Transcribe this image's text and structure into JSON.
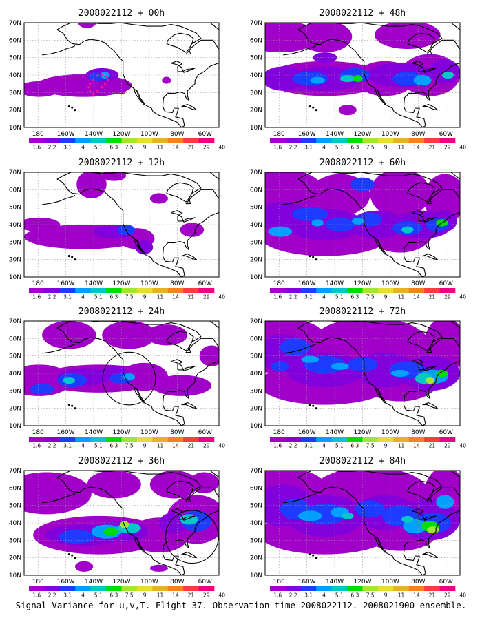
{
  "caption": "Signal Variance for u,v,T. Flight 37. Observation time 2008022112. 2008021900 ensemble.",
  "colorbar": {
    "labels": [
      "1.6",
      "2.2",
      "3.1",
      "4",
      "5.1",
      "6.3",
      "7.5",
      "9",
      "11",
      "14",
      "21",
      "29",
      "40"
    ],
    "colors": [
      "#a000c8",
      "#8200dc",
      "#1e3cff",
      "#00a0ff",
      "#00c8c8",
      "#00dc00",
      "#a0e632",
      "#e6dc32",
      "#e6af2d",
      "#f08228",
      "#fa3c3c",
      "#f00082"
    ]
  },
  "map_axes": {
    "lon_labels": [
      "180",
      "160W",
      "140W",
      "120W",
      "100W",
      "80W",
      "60W"
    ],
    "lat_labels": [
      "10N",
      "20N",
      "30N",
      "40N",
      "50N",
      "60N",
      "70N"
    ],
    "grid": true
  },
  "colors": {
    "coast": "#000000",
    "grid": "#9a9a9a",
    "obs_track": "#ff1493"
  },
  "chart_data": [
    {
      "type": "heatmap",
      "title": "2008022112 + 00h",
      "lead": "00h",
      "field": "signal variance (u,v,T)",
      "regions": [
        {
          "name": "central Pacific band",
          "lon": [
            -180,
            -128
          ],
          "lat": [
            28,
            42
          ],
          "max_level": "4-5.1"
        },
        {
          "name": "obs area (140W,38N)",
          "lon": [
            -148,
            -130
          ],
          "lat": [
            34,
            42
          ],
          "max_level": "4-5.1"
        }
      ],
      "overlay": "observation track (dotted magenta) near 147W-135W, 28N-42N"
    },
    {
      "type": "heatmap",
      "title": "2008022112 + 12h",
      "lead": "12h",
      "field": "signal variance (u,v,T)",
      "regions": [
        {
          "name": "Pacific band",
          "lon": [
            -180,
            -115
          ],
          "lat": [
            24,
            42
          ],
          "max_level": "4-5.1"
        },
        {
          "name": "Alaska",
          "lon": [
            -160,
            -130
          ],
          "lat": [
            54,
            70
          ],
          "max_level": "1.6-2.2"
        }
      ]
    },
    {
      "type": "heatmap",
      "title": "2008022112 + 24h",
      "lead": "24h",
      "field": "signal variance (u,v,T)",
      "regions": [
        {
          "name": "Pacific band",
          "lon": [
            -180,
            -100
          ],
          "lat": [
            26,
            48
          ],
          "max_level": "5.1-6.3"
        },
        {
          "name": "north Pacific",
          "lon": [
            -180,
            -100
          ],
          "lat": [
            52,
            70
          ],
          "max_level": "1.6-2.2"
        }
      ],
      "overlay": "verification circle near 120W, 37N"
    },
    {
      "type": "heatmap",
      "title": "2008022112 + 36h",
      "lead": "36h",
      "field": "signal variance (u,v,T)",
      "regions": [
        {
          "name": "Pacific band",
          "lon": [
            -180,
            -95
          ],
          "lat": [
            22,
            45
          ],
          "max_level": "6.3-7.5"
        },
        {
          "name": "eastern US",
          "lon": [
            -95,
            -60
          ],
          "lat": [
            28,
            55
          ],
          "max_level": "5.1-6.3"
        }
      ],
      "overlay": "verification circle near 78W, 32N"
    },
    {
      "type": "heatmap",
      "title": "2008022112 + 48h",
      "lead": "48h",
      "field": "signal variance (u,v,T)",
      "regions": [
        {
          "name": "Pacific band",
          "lon": [
            -180,
            -120
          ],
          "lat": [
            28,
            45
          ],
          "max_level": "7.5-9"
        },
        {
          "name": "North America",
          "lon": [
            -120,
            -60
          ],
          "lat": [
            30,
            50
          ],
          "max_level": "7.5-9"
        }
      ]
    },
    {
      "type": "heatmap",
      "title": "2008022112 + 60h",
      "lead": "60h",
      "field": "signal variance (u,v,T)",
      "regions": [
        {
          "name": "Pacific band",
          "lon": [
            -180,
            -120
          ],
          "lat": [
            28,
            50
          ],
          "max_level": "7.5-9"
        },
        {
          "name": "eastern US",
          "lon": [
            -100,
            -60
          ],
          "lat": [
            30,
            50
          ],
          "max_level": "9-11"
        }
      ]
    },
    {
      "type": "heatmap",
      "title": "2008022112 + 72h",
      "lead": "72h",
      "field": "signal variance (u,v,T)",
      "regions": [
        {
          "name": "Pacific band",
          "lon": [
            -180,
            -120
          ],
          "lat": [
            30,
            55
          ],
          "max_level": "7.5-9"
        },
        {
          "name": "eastern US",
          "lon": [
            -100,
            -60
          ],
          "lat": [
            30,
            48
          ],
          "max_level": "11-14"
        }
      ]
    },
    {
      "type": "heatmap",
      "title": "2008022112 + 84h",
      "lead": "84h",
      "field": "signal variance (u,v,T)",
      "regions": [
        {
          "name": "Pacific band",
          "lon": [
            -180,
            -120
          ],
          "lat": [
            30,
            55
          ],
          "max_level": "9-11"
        },
        {
          "name": "eastern US",
          "lon": [
            -95,
            -60
          ],
          "lat": [
            30,
            45
          ],
          "max_level": "11-14"
        }
      ]
    }
  ]
}
